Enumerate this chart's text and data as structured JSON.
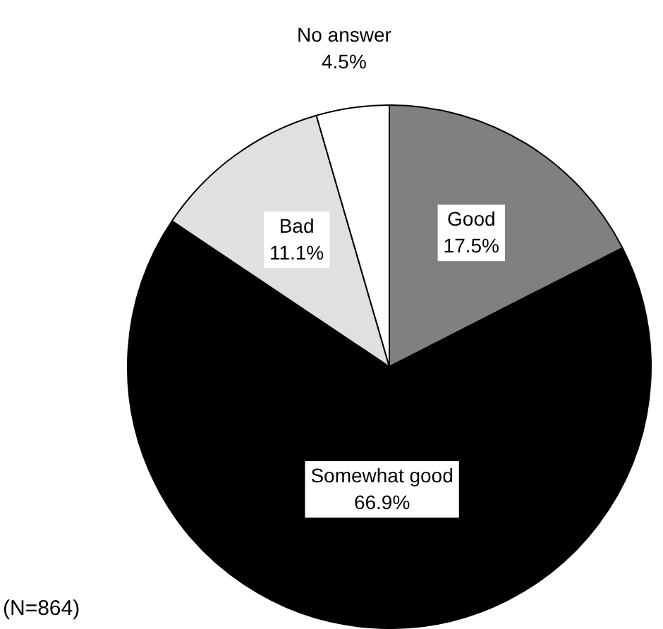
{
  "chart_data": {
    "type": "pie",
    "categories": [
      "Good",
      "Somewhat good",
      "Bad",
      "No answer"
    ],
    "values": [
      17.5,
      66.9,
      11.1,
      4.5
    ],
    "colors": [
      "#808080",
      "#000000",
      "#e0e0e0",
      "#ffffff"
    ],
    "value_labels": [
      "17.5%",
      "66.9%",
      "11.1%",
      "4.5%"
    ],
    "legend": false,
    "annotations": [
      "(N=864)"
    ]
  }
}
